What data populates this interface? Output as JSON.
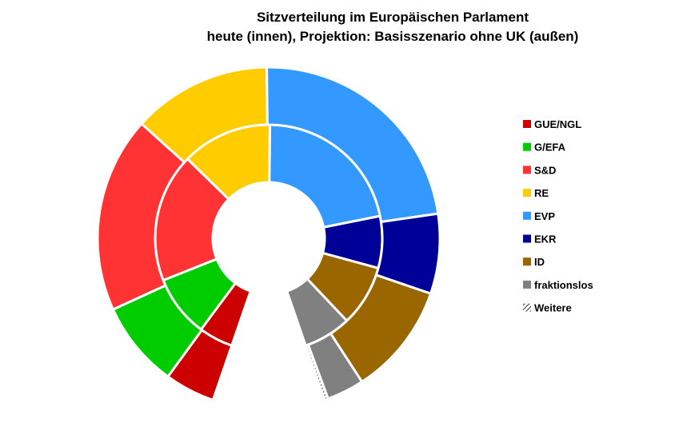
{
  "chart_data": {
    "type": "pie",
    "subtype": "nested-donut-hemicycle",
    "title": "Sitzverteilung im Europäischen Parlament",
    "subtitle": "heute (innen), Projektion: Basisszenario ohne UK (außen)",
    "legend_position": "right",
    "series": [
      {
        "ring": "inner",
        "values": [
          {
            "party": "GUE/NGL",
            "seats": 41
          },
          {
            "party": "G/EFA",
            "seats": 74
          },
          {
            "party": "S&D",
            "seats": 154
          },
          {
            "party": "RE",
            "seats": 108
          },
          {
            "party": "EVP",
            "seats": 182
          },
          {
            "party": "EKR",
            "seats": 62
          },
          {
            "party": "ID",
            "seats": 73
          },
          {
            "party": "fraktionslos",
            "seats": 57
          }
        ]
      },
      {
        "ring": "outer",
        "values": [
          {
            "party": "GUE/NGL",
            "seats": 39
          },
          {
            "party": "G/EFA",
            "seats": 67
          },
          {
            "party": "S&D",
            "seats": 152
          },
          {
            "party": "RE",
            "seats": 108
          },
          {
            "party": "EVP",
            "seats": 188
          },
          {
            "party": "EKR",
            "seats": 62
          },
          {
            "party": "ID",
            "seats": 87
          },
          {
            "party": "fraktionslos",
            "seats": 29
          },
          {
            "party": "Weitere",
            "seats": 3
          }
        ]
      }
    ],
    "legend": [
      {
        "label": "GUE/NGL",
        "color": "#cc0000"
      },
      {
        "label": "G/EFA",
        "color": "#00cc00"
      },
      {
        "label": "S&D",
        "color": "#ff3333"
      },
      {
        "label": "RE",
        "color": "#ffcc00"
      },
      {
        "label": "EVP",
        "color": "#3399ff"
      },
      {
        "label": "EKR",
        "color": "#000099"
      },
      {
        "label": "ID",
        "color": "#996600"
      },
      {
        "label": "fraktionslos",
        "color": "#808080"
      },
      {
        "label": "Weitere",
        "color": "hatched"
      }
    ]
  }
}
